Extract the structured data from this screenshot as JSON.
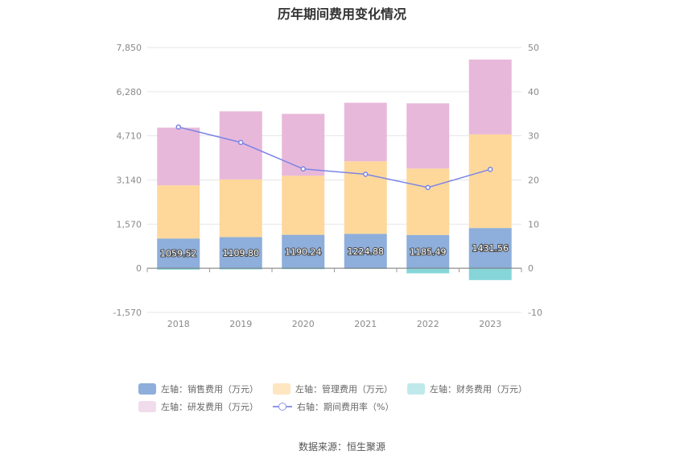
{
  "chart_data": {
    "type": "bar",
    "title": "历年期间费用变化情况",
    "categories": [
      "2018",
      "2019",
      "2020",
      "2021",
      "2022",
      "2023"
    ],
    "left_axis": {
      "ticks": [
        "7,850",
        "6,280",
        "4,710",
        "3,140",
        "1,570",
        "0",
        "-1,570"
      ],
      "ylim": [
        -1570,
        7850
      ]
    },
    "right_axis": {
      "ticks": [
        "50",
        "40",
        "30",
        "20",
        "10",
        "0",
        "-10"
      ],
      "ylim": [
        -10,
        50
      ]
    },
    "series": [
      {
        "name": "左轴：销售费用（万元）",
        "kind": "bar",
        "color": "#8eaedb",
        "values": [
          1059.52,
          1109.8,
          1190.24,
          1224.88,
          1185.49,
          1431.56
        ],
        "labels": [
          "1059.52",
          "1109.80",
          "1190.24",
          "1224.88",
          "1185.49",
          "1431.56"
        ]
      },
      {
        "name": "左轴：管理费用（万元）",
        "kind": "bar",
        "color": "#fdd89a",
        "values": [
          1890,
          2050,
          2100,
          2580,
          2360,
          3330
        ]
      },
      {
        "name": "左轴：财务费用（万元）",
        "kind": "bar",
        "color": "#86d6d9",
        "values": [
          -50,
          -40,
          -30,
          -20,
          -180,
          -420
        ]
      },
      {
        "name": "左轴：研发费用（万元）",
        "kind": "bar",
        "color": "#e8b8da",
        "values": [
          2050,
          2420,
          2200,
          2080,
          2320,
          2660
        ]
      },
      {
        "name": "右轴：期间费用率（%）",
        "kind": "line",
        "color": "#7b85e6",
        "values": [
          32.0,
          28.5,
          22.5,
          21.3,
          18.3,
          22.4
        ]
      }
    ]
  },
  "source": "数据来源：恒生聚源"
}
